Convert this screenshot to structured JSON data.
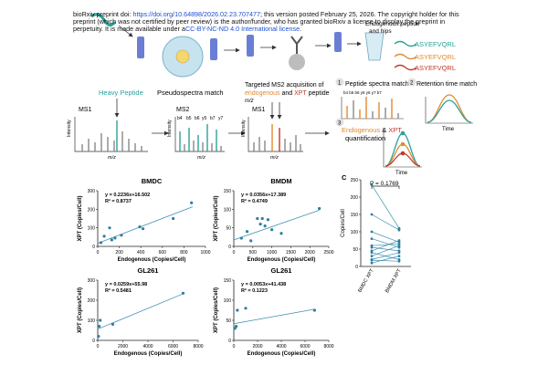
{
  "banner": {
    "pre": "bioRxiv preprint doi: ",
    "doi": "https://doi.org/10.64898/2026.02.23.707477",
    "mid": "; this version posted February 25, 2026. The copyright holder for this preprint (which was not certified by peer review) is the author/funder, who has granted bioRxiv a license to display the preprint in perpetuity. It is made available under a",
    "license": "CC-BY-NC-ND 4.0 International license",
    "post": "."
  },
  "top_panel": {
    "top_label_a": "Endogenous peptide",
    "top_label_b": "and hips",
    "peptides": [
      "ASYEFVQRL",
      "ASYEFVQRL",
      "ASYEFVQRL"
    ],
    "heavy_peptide": "Heavy Peptide",
    "pseudospectra_match": "Pseudospectra match",
    "targeted_line1": "Targeted MS2 acquisition of",
    "targeted_endo": "endogenous",
    "targeted_and": " and ",
    "targeted_xpt": "XPT",
    "targeted_rest": " peptide",
    "mz_label": "m/z",
    "ms1": "MS1",
    "ms2": "MS2",
    "intensity": "Intensity",
    "ion_labels": [
      "b4",
      "b5",
      "b6",
      "y5",
      "b7",
      "y7"
    ],
    "step1_num": "1",
    "step1_label": "Peptide spectra match",
    "step1_ions": "b4 b5 b6 y5 y6 y7 b7",
    "step2_num": "2",
    "step2_label": "Retention time match",
    "step3_num": "3",
    "step3_endo": "Endogenous",
    "step3_amp": " & ",
    "step3_xpt": "XPT",
    "step3_quant": "quantification",
    "time_label": "Time"
  },
  "colors": {
    "teal": "#2aa198",
    "orange": "#e08a2e",
    "red": "#c0392b",
    "blue": "#3f6fd1",
    "dot": "#2e7fa0",
    "line": "#3d8fb0",
    "grey": "#888888"
  },
  "chart_data": [
    {
      "type": "scatter",
      "title": "BMDC",
      "xlabel": "Endogenous (Copies/Cell)",
      "ylabel": "XPT (Copies/Cell)",
      "xlim": [
        0,
        1000
      ],
      "ylim": [
        0,
        300
      ],
      "xticks": [
        0,
        200,
        400,
        600,
        800,
        1000
      ],
      "yticks": [
        0,
        100,
        200,
        300
      ],
      "equation": "y = 0.2236x+16.502",
      "r2": "R² = 0.8737",
      "slope": 0.2236,
      "intercept": 16.502,
      "fit_range": [
        0,
        880
      ],
      "points": [
        [
          30,
          20
        ],
        [
          60,
          55
        ],
        [
          110,
          100
        ],
        [
          130,
          35
        ],
        [
          160,
          45
        ],
        [
          220,
          60
        ],
        [
          390,
          105
        ],
        [
          420,
          95
        ],
        [
          700,
          150
        ],
        [
          870,
          235
        ]
      ]
    },
    {
      "type": "scatter",
      "title": "BMDM",
      "xlabel": "Endogenous (Copies/Cell)",
      "ylabel": "XPT (Copies/Cell)",
      "xlim": [
        0,
        2500
      ],
      "ylim": [
        0,
        150
      ],
      "xticks": [
        0,
        500,
        1000,
        1500,
        2000,
        2500
      ],
      "yticks": [
        0,
        50,
        100,
        150
      ],
      "equation": "y = 0.0356x+17.389",
      "r2": "R² = 0.4749",
      "slope": 0.0356,
      "intercept": 17.389,
      "fit_range": [
        0,
        2250
      ],
      "points": [
        [
          200,
          22
        ],
        [
          350,
          40
        ],
        [
          450,
          15
        ],
        [
          620,
          75
        ],
        [
          700,
          60
        ],
        [
          750,
          75
        ],
        [
          820,
          55
        ],
        [
          900,
          72
        ],
        [
          1000,
          45
        ],
        [
          1250,
          35
        ],
        [
          2250,
          102
        ]
      ]
    },
    {
      "type": "scatter",
      "title": "GL261",
      "xlabel": "Endogenous (Copies/Cell)",
      "ylabel": "XPT (Copies/Cell)",
      "xlim": [
        0,
        8000
      ],
      "ylim": [
        0,
        300
      ],
      "xticks": [
        0,
        2000,
        4000,
        6000,
        8000
      ],
      "yticks": [
        0,
        100,
        200,
        300
      ],
      "equation": "y = 0.0259x+55.98",
      "r2": "R² = 0.5481",
      "slope": 0.0259,
      "intercept": 55.98,
      "fit_range": [
        0,
        6800
      ],
      "points": [
        [
          60,
          20
        ],
        [
          120,
          70
        ],
        [
          200,
          100
        ],
        [
          1200,
          80
        ],
        [
          6800,
          235
        ]
      ]
    },
    {
      "type": "scatter",
      "title": "GL261",
      "xlabel": "Endogenous (Copies/Cell)",
      "ylabel": "XPT (Copies/Cell)",
      "xlim": [
        0,
        8000
      ],
      "ylim": [
        0,
        150
      ],
      "xticks": [
        0,
        2000,
        4000,
        6000,
        8000
      ],
      "yticks": [
        0,
        50,
        100,
        150
      ],
      "equation": "y = 0.0053x+41.438",
      "r2": "R² = 0.1223",
      "slope": 0.0053,
      "intercept": 41.438,
      "fit_range": [
        0,
        6800
      ],
      "points": [
        [
          100,
          30
        ],
        [
          200,
          35
        ],
        [
          300,
          75
        ],
        [
          1000,
          80
        ],
        [
          6800,
          75
        ]
      ]
    },
    {
      "type": "paired-dot",
      "panel_label": "C",
      "pvalue": "P = 0.1769",
      "ylabel": "Copies/Cell",
      "categories": [
        "BMDC XPT",
        "BMDM XPT"
      ],
      "ylim": [
        0,
        250
      ],
      "yticks": [
        0,
        50,
        100,
        150,
        200,
        250
      ],
      "pairs": [
        [
          235,
          110
        ],
        [
          150,
          105
        ],
        [
          100,
          70
        ],
        [
          80,
          55
        ],
        [
          60,
          65
        ],
        [
          55,
          45
        ],
        [
          45,
          75
        ],
        [
          40,
          20
        ],
        [
          30,
          60
        ],
        [
          20,
          40
        ],
        [
          18,
          15
        ],
        [
          10,
          30
        ]
      ]
    }
  ]
}
